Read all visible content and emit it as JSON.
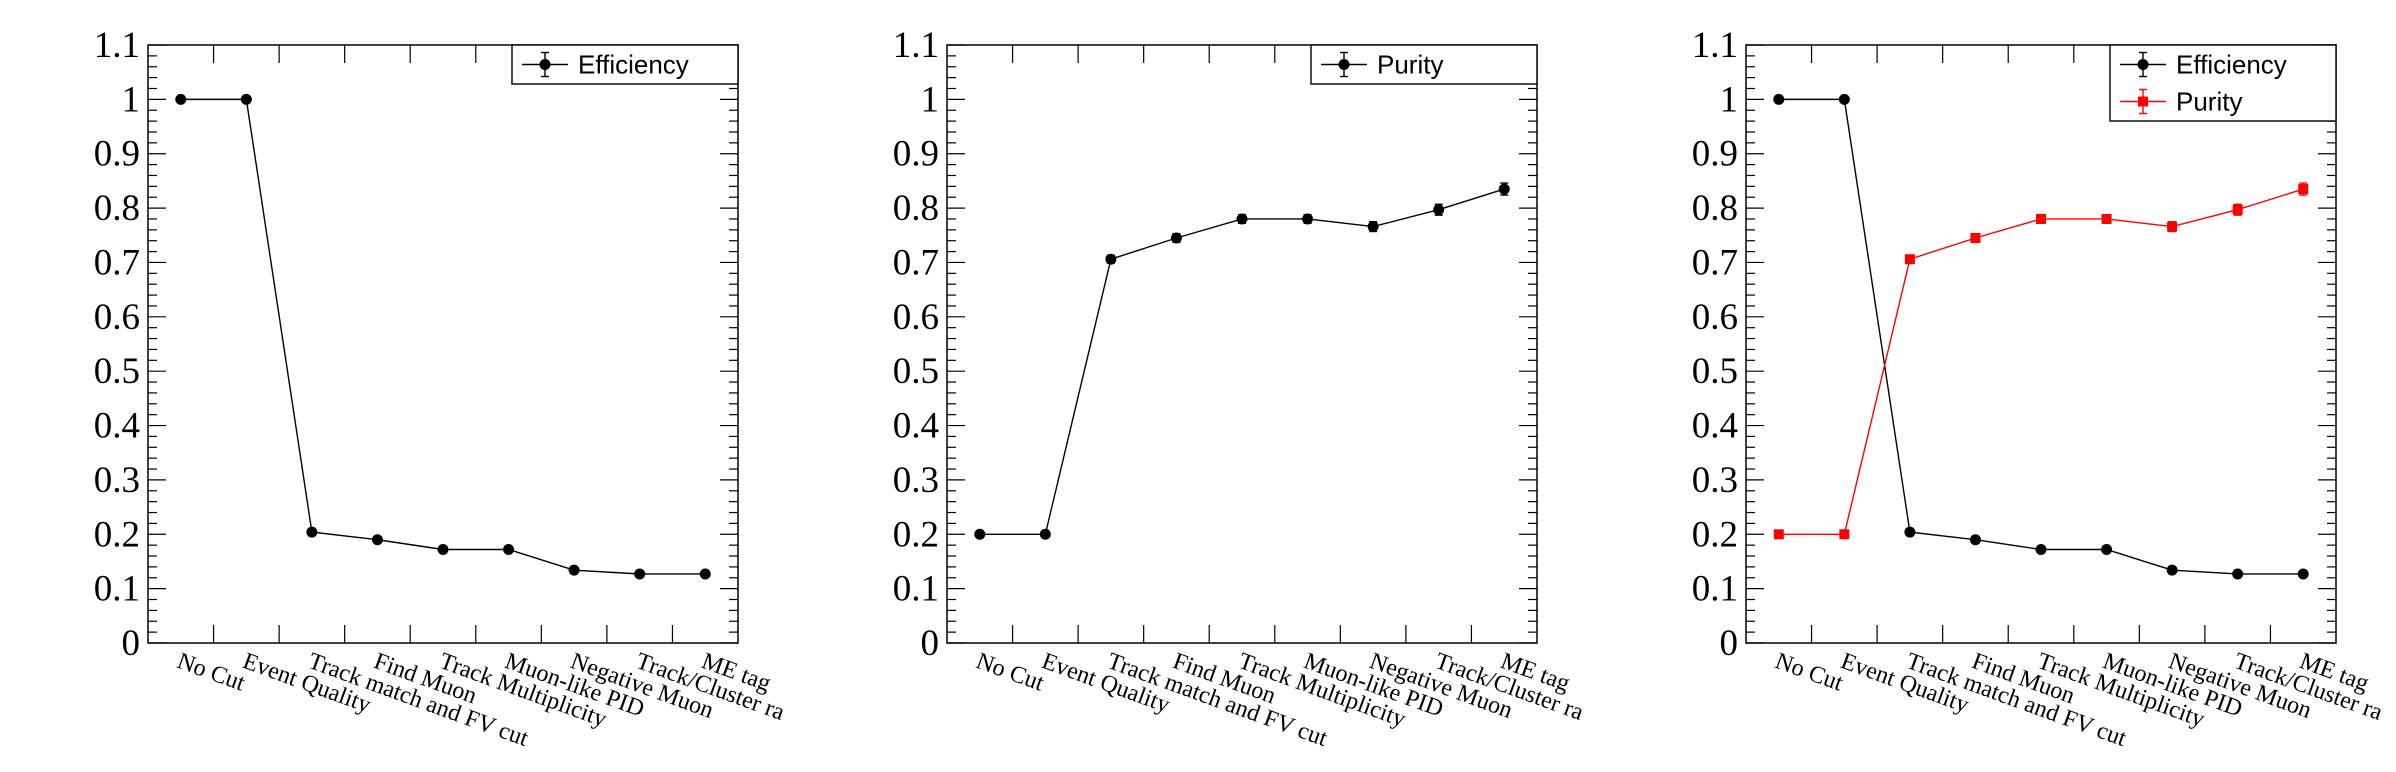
{
  "chart_data": [
    {
      "type": "line",
      "title": "",
      "xlabel": "",
      "ylabel": "",
      "ylim": [
        0,
        1.1
      ],
      "yticks": [
        "0",
        "0.1",
        "0.2",
        "0.3",
        "0.4",
        "0.5",
        "0.6",
        "0.7",
        "0.8",
        "0.9",
        "1",
        "1.1"
      ],
      "categories": [
        "No Cut",
        "Event Quality",
        "Track match and FV cut",
        "Find Muon",
        "Track Multiplicity",
        "Muon-like PID",
        "Negative Muon",
        "Track/Cluster ra",
        "ME tag"
      ],
      "legend_position": "top-right",
      "grid": false,
      "series": [
        {
          "name": "Efficiency",
          "color": "#000000",
          "marker": "circle",
          "values": [
            1.0,
            1.0,
            0.204,
            0.19,
            0.172,
            0.172,
            0.134,
            0.127,
            0.127
          ],
          "errors": [
            0,
            0,
            0,
            0,
            0,
            0,
            0,
            0,
            0
          ]
        }
      ]
    },
    {
      "type": "line",
      "title": "",
      "xlabel": "",
      "ylabel": "",
      "ylim": [
        0,
        1.1
      ],
      "yticks": [
        "0",
        "0.1",
        "0.2",
        "0.3",
        "0.4",
        "0.5",
        "0.6",
        "0.7",
        "0.8",
        "0.9",
        "1",
        "1.1"
      ],
      "categories": [
        "No Cut",
        "Event Quality",
        "Track match and FV cut",
        "Find Muon",
        "Track Multiplicity",
        "Muon-like PID",
        "Negative Muon",
        "Track/Cluster ra",
        "ME tag"
      ],
      "legend_position": "top-right",
      "grid": false,
      "series": [
        {
          "name": "Purity",
          "color": "#000000",
          "marker": "circle",
          "values": [
            0.2,
            0.2,
            0.706,
            0.745,
            0.78,
            0.78,
            0.766,
            0.797,
            0.835
          ],
          "errors": [
            0.003,
            0.003,
            0.007,
            0.008,
            0.008,
            0.008,
            0.009,
            0.01,
            0.011
          ]
        }
      ]
    },
    {
      "type": "line",
      "title": "",
      "xlabel": "",
      "ylabel": "",
      "ylim": [
        0,
        1.1
      ],
      "yticks": [
        "0",
        "0.1",
        "0.2",
        "0.3",
        "0.4",
        "0.5",
        "0.6",
        "0.7",
        "0.8",
        "0.9",
        "1",
        "1.1"
      ],
      "categories": [
        "No Cut",
        "Event Quality",
        "Track match and FV cut",
        "Find Muon",
        "Track Multiplicity",
        "Muon-like PID",
        "Negative Muon",
        "Track/Cluster ra",
        "ME tag"
      ],
      "legend_position": "top-right",
      "grid": false,
      "series": [
        {
          "name": "Efficiency",
          "color": "#000000",
          "marker": "circle",
          "values": [
            1.0,
            1.0,
            0.204,
            0.19,
            0.172,
            0.172,
            0.134,
            0.127,
            0.127
          ],
          "errors": [
            0,
            0,
            0,
            0,
            0,
            0,
            0,
            0,
            0
          ]
        },
        {
          "name": "Purity",
          "color": "#ff0000",
          "marker": "square",
          "values": [
            0.2,
            0.2,
            0.706,
            0.745,
            0.78,
            0.78,
            0.766,
            0.797,
            0.835
          ],
          "errors": [
            0.003,
            0.003,
            0.007,
            0.008,
            0.008,
            0.008,
            0.009,
            0.01,
            0.011
          ]
        }
      ]
    }
  ]
}
